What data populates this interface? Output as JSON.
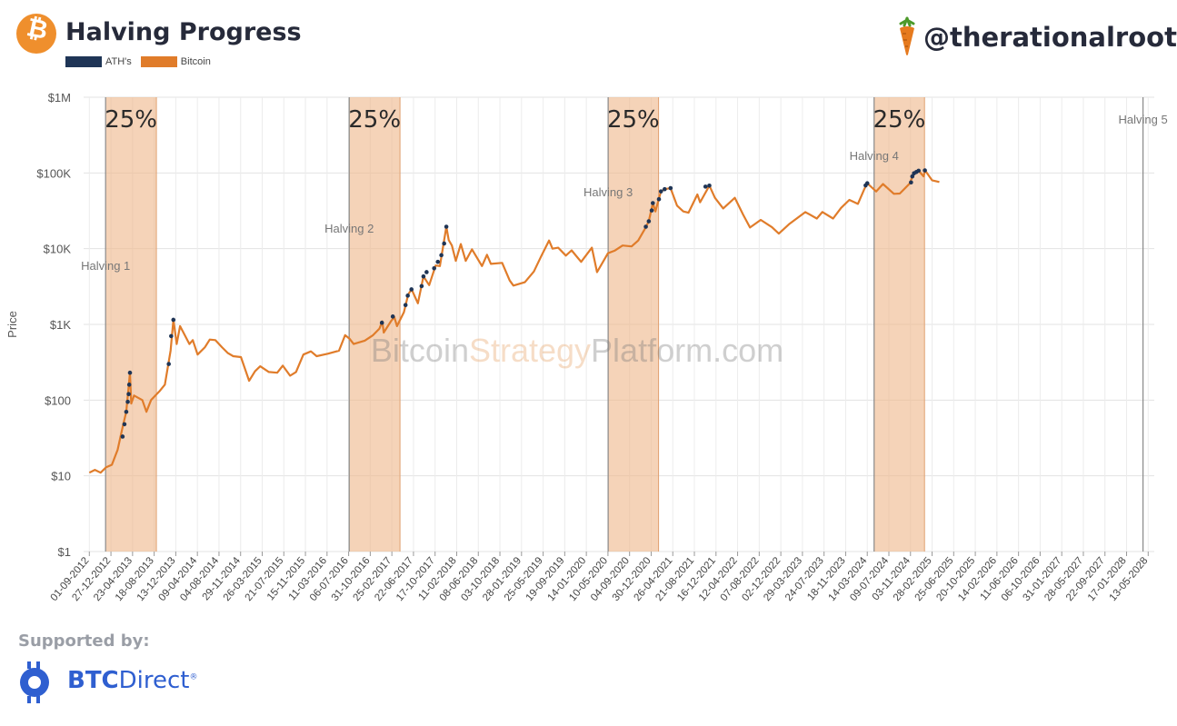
{
  "header": {
    "title": "Halving Progress",
    "logo_symbol": "₿",
    "handle": "@therationalroot",
    "legend": [
      {
        "label": "ATH's",
        "color": "#1f3556"
      },
      {
        "label": "Bitcoin",
        "color": "#e07c2a"
      }
    ]
  },
  "watermark": {
    "part1": "Bitcoin",
    "part2": "Strategy",
    "part3": "Platform.com"
  },
  "footer": {
    "supported_by": "Supported by:",
    "brand_bold": "BTC",
    "brand_rest": "Direct",
    "brand_mark": "®"
  },
  "chart_data": {
    "type": "line",
    "title": "Halving Progress",
    "ylabel": "Price",
    "yscale": "log",
    "ylim": [
      1,
      1000000
    ],
    "yticks": [
      {
        "value": 1,
        "label": "$1"
      },
      {
        "value": 10,
        "label": "$10"
      },
      {
        "value": 100,
        "label": "$100"
      },
      {
        "value": 1000,
        "label": "$1K"
      },
      {
        "value": 10000,
        "label": "$10K"
      },
      {
        "value": 100000,
        "label": "$100K"
      },
      {
        "value": 1000000,
        "label": "$1M"
      }
    ],
    "xlim": [
      "2012-08-01",
      "2028-06-15"
    ],
    "xticks": [
      "01-09-2012",
      "27-12-2012",
      "23-04-2013",
      "18-08-2013",
      "13-12-2013",
      "09-04-2014",
      "04-08-2014",
      "29-11-2014",
      "26-03-2015",
      "21-07-2015",
      "15-11-2015",
      "11-03-2016",
      "06-07-2016",
      "31-10-2016",
      "25-02-2017",
      "22-06-2017",
      "17-10-2017",
      "11-02-2018",
      "08-06-2018",
      "03-10-2018",
      "28-01-2019",
      "25-05-2019",
      "19-09-2019",
      "14-01-2020",
      "10-05-2020",
      "04-09-2020",
      "30-12-2020",
      "26-04-2021",
      "21-08-2021",
      "16-12-2021",
      "12-04-2022",
      "07-08-2022",
      "02-12-2022",
      "29-03-2023",
      "24-07-2023",
      "18-11-2023",
      "14-03-2024",
      "09-07-2024",
      "03-11-2024",
      "28-02-2025",
      "25-06-2025",
      "20-10-2025",
      "14-02-2026",
      "11-06-2026",
      "06-10-2026",
      "31-01-2027",
      "28-05-2027",
      "22-09-2027",
      "17-01-2028",
      "13-05-2028"
    ],
    "halvings": [
      {
        "label": "Halving 1",
        "date": "2012-11-28"
      },
      {
        "label": "Halving 2",
        "date": "2016-07-09"
      },
      {
        "label": "Halving 3",
        "date": "2020-05-11"
      },
      {
        "label": "Halving 4",
        "date": "2024-04-20"
      },
      {
        "label": "Halving 5",
        "date": "2028-04-15"
      }
    ],
    "progress_bands": [
      {
        "start": "2012-11-28",
        "end": "2013-08-30",
        "label": "25%"
      },
      {
        "start": "2016-07-09",
        "end": "2017-04-10",
        "label": "25%"
      },
      {
        "start": "2020-05-11",
        "end": "2021-02-08",
        "label": "25%"
      },
      {
        "start": "2024-04-20",
        "end": "2025-01-18",
        "label": "25%"
      }
    ],
    "series": [
      {
        "name": "Bitcoin",
        "color": "#e07c2a",
        "points": [
          [
            "2012-09-01",
            11
          ],
          [
            "2012-10-01",
            12
          ],
          [
            "2012-11-01",
            11
          ],
          [
            "2012-12-01",
            13
          ],
          [
            "2013-01-01",
            14
          ],
          [
            "2013-02-01",
            22
          ],
          [
            "2013-03-01",
            45
          ],
          [
            "2013-03-20",
            70
          ],
          [
            "2013-04-09",
            230
          ],
          [
            "2013-04-16",
            90
          ],
          [
            "2013-05-01",
            115
          ],
          [
            "2013-06-15",
            100
          ],
          [
            "2013-07-07",
            70
          ],
          [
            "2013-08-01",
            100
          ],
          [
            "2013-09-15",
            130
          ],
          [
            "2013-10-15",
            160
          ],
          [
            "2013-11-15",
            450
          ],
          [
            "2013-11-30",
            1150
          ],
          [
            "2013-12-18",
            550
          ],
          [
            "2014-01-05",
            950
          ],
          [
            "2014-02-25",
            550
          ],
          [
            "2014-03-15",
            620
          ],
          [
            "2014-04-10",
            400
          ],
          [
            "2014-05-20",
            500
          ],
          [
            "2014-06-15",
            630
          ],
          [
            "2014-07-15",
            620
          ],
          [
            "2014-08-20",
            500
          ],
          [
            "2014-09-20",
            420
          ],
          [
            "2014-10-20",
            380
          ],
          [
            "2014-12-01",
            370
          ],
          [
            "2015-01-14",
            180
          ],
          [
            "2015-02-15",
            240
          ],
          [
            "2015-03-15",
            280
          ],
          [
            "2015-05-01",
            235
          ],
          [
            "2015-06-15",
            230
          ],
          [
            "2015-07-15",
            285
          ],
          [
            "2015-08-24",
            210
          ],
          [
            "2015-09-25",
            235
          ],
          [
            "2015-11-04",
            400
          ],
          [
            "2015-12-15",
            440
          ],
          [
            "2016-01-15",
            380
          ],
          [
            "2016-03-15",
            410
          ],
          [
            "2016-05-15",
            450
          ],
          [
            "2016-06-17",
            720
          ],
          [
            "2016-07-10",
            650
          ],
          [
            "2016-08-02",
            550
          ],
          [
            "2016-10-01",
            610
          ],
          [
            "2016-11-15",
            720
          ],
          [
            "2016-12-20",
            880
          ],
          [
            "2017-01-04",
            1100
          ],
          [
            "2017-01-12",
            780
          ],
          [
            "2017-02-20",
            1100
          ],
          [
            "2017-03-10",
            1250
          ],
          [
            "2017-03-25",
            950
          ],
          [
            "2017-05-01",
            1450
          ],
          [
            "2017-05-25",
            2500
          ],
          [
            "2017-06-12",
            2900
          ],
          [
            "2017-07-16",
            1900
          ],
          [
            "2017-08-15",
            4300
          ],
          [
            "2017-09-15",
            3300
          ],
          [
            "2017-10-20",
            6000
          ],
          [
            "2017-11-12",
            5900
          ],
          [
            "2017-12-17",
            19500
          ],
          [
            "2017-12-30",
            13000
          ],
          [
            "2018-01-16",
            11000
          ],
          [
            "2018-02-06",
            6900
          ],
          [
            "2018-03-05",
            11500
          ],
          [
            "2018-04-01",
            6900
          ],
          [
            "2018-05-05",
            9800
          ],
          [
            "2018-06-28",
            5900
          ],
          [
            "2018-07-25",
            8300
          ],
          [
            "2018-08-15",
            6300
          ],
          [
            "2018-10-15",
            6500
          ],
          [
            "2018-11-25",
            3800
          ],
          [
            "2018-12-15",
            3250
          ],
          [
            "2019-02-15",
            3600
          ],
          [
            "2019-04-05",
            5000
          ],
          [
            "2019-05-15",
            8000
          ],
          [
            "2019-06-26",
            12800
          ],
          [
            "2019-07-15",
            10000
          ],
          [
            "2019-08-15",
            10300
          ],
          [
            "2019-09-25",
            8100
          ],
          [
            "2019-10-26",
            9500
          ],
          [
            "2019-12-17",
            6700
          ],
          [
            "2020-02-13",
            10300
          ],
          [
            "2020-03-12",
            4900
          ],
          [
            "2020-04-15",
            6800
          ],
          [
            "2020-05-10",
            8700
          ],
          [
            "2020-06-15",
            9400
          ],
          [
            "2020-07-28",
            11000
          ],
          [
            "2020-09-15",
            10700
          ],
          [
            "2020-10-21",
            12800
          ],
          [
            "2020-11-30",
            19000
          ],
          [
            "2020-12-17",
            23000
          ],
          [
            "2021-01-08",
            40000
          ],
          [
            "2021-01-22",
            31000
          ],
          [
            "2021-02-21",
            57000
          ],
          [
            "2021-03-13",
            61000
          ],
          [
            "2021-04-14",
            63000
          ],
          [
            "2021-05-19",
            37000
          ],
          [
            "2021-06-22",
            31000
          ],
          [
            "2021-07-20",
            29800
          ],
          [
            "2021-09-06",
            52000
          ],
          [
            "2021-09-21",
            41000
          ],
          [
            "2021-11-10",
            68000
          ],
          [
            "2021-12-10",
            47000
          ],
          [
            "2022-01-24",
            34000
          ],
          [
            "2022-03-28",
            47000
          ],
          [
            "2022-05-12",
            28000
          ],
          [
            "2022-06-18",
            19000
          ],
          [
            "2022-08-15",
            24000
          ],
          [
            "2022-10-15",
            19200
          ],
          [
            "2022-11-21",
            15800
          ],
          [
            "2023-01-15",
            21000
          ],
          [
            "2023-04-14",
            30400
          ],
          [
            "2023-06-15",
            25000
          ],
          [
            "2023-07-15",
            30500
          ],
          [
            "2023-09-11",
            25000
          ],
          [
            "2023-10-24",
            34500
          ],
          [
            "2023-12-08",
            44000
          ],
          [
            "2024-01-23",
            39000
          ],
          [
            "2024-02-28",
            62000
          ],
          [
            "2024-03-14",
            73000
          ],
          [
            "2024-05-01",
            57000
          ],
          [
            "2024-06-07",
            71500
          ],
          [
            "2024-08-05",
            53000
          ],
          [
            "2024-09-06",
            53500
          ],
          [
            "2024-10-29",
            72000
          ],
          [
            "2024-11-22",
            99000
          ],
          [
            "2024-12-17",
            107000
          ],
          [
            "2025-01-13",
            90000
          ],
          [
            "2025-01-21",
            108000
          ],
          [
            "2025-02-28",
            80000
          ],
          [
            "2025-04-08",
            76000
          ]
        ]
      },
      {
        "name": "ATH's",
        "color": "#1f3556",
        "points": [
          [
            "2013-02-28",
            33
          ],
          [
            "2013-03-10",
            48
          ],
          [
            "2013-03-20",
            70
          ],
          [
            "2013-03-28",
            95
          ],
          [
            "2013-04-02",
            120
          ],
          [
            "2013-04-05",
            160
          ],
          [
            "2013-04-09",
            230
          ],
          [
            "2013-11-05",
            300
          ],
          [
            "2013-11-18",
            700
          ],
          [
            "2013-11-30",
            1150
          ],
          [
            "2017-01-02",
            1050
          ],
          [
            "2017-03-02",
            1270
          ],
          [
            "2017-05-10",
            1800
          ],
          [
            "2017-05-22",
            2400
          ],
          [
            "2017-06-11",
            2900
          ],
          [
            "2017-08-05",
            3200
          ],
          [
            "2017-08-15",
            4300
          ],
          [
            "2017-09-01",
            4900
          ],
          [
            "2017-10-12",
            5500
          ],
          [
            "2017-11-01",
            6700
          ],
          [
            "2017-11-20",
            8200
          ],
          [
            "2017-12-05",
            11700
          ],
          [
            "2017-12-17",
            19500
          ],
          [
            "2020-12-01",
            19500
          ],
          [
            "2020-12-17",
            23000
          ],
          [
            "2021-01-02",
            32000
          ],
          [
            "2021-01-08",
            40000
          ],
          [
            "2021-02-10",
            45000
          ],
          [
            "2021-02-21",
            57000
          ],
          [
            "2021-03-13",
            61000
          ],
          [
            "2021-04-14",
            63000
          ],
          [
            "2021-10-20",
            66000
          ],
          [
            "2021-11-10",
            68000
          ],
          [
            "2024-03-05",
            68500
          ],
          [
            "2024-03-14",
            73000
          ],
          [
            "2024-11-06",
            75000
          ],
          [
            "2024-11-13",
            90000
          ],
          [
            "2024-11-22",
            99000
          ],
          [
            "2024-12-05",
            103000
          ],
          [
            "2024-12-17",
            107000
          ],
          [
            "2025-01-20",
            108000
          ]
        ]
      }
    ]
  }
}
